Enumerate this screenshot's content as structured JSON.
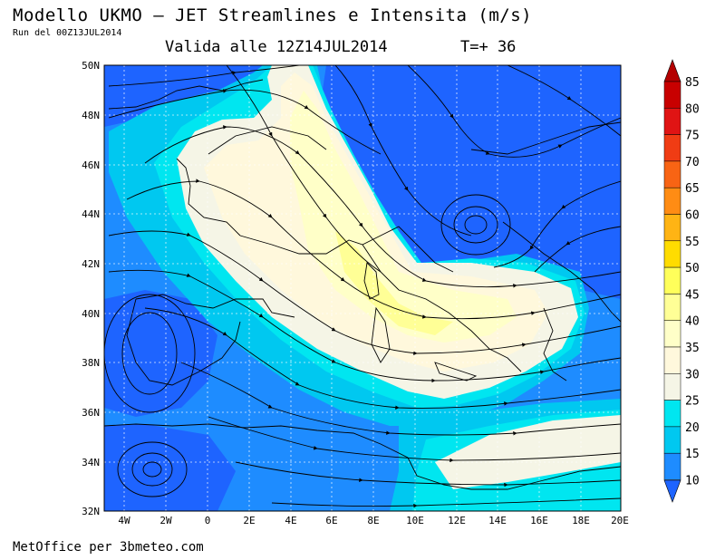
{
  "header": {
    "title": "Modello UKMO — JET Streamlines e Intensita (m/s)",
    "run": "Run del 00Z13JUL2014",
    "valid": "Valida alle 12Z14JUL2014",
    "step": "T=+ 36"
  },
  "footer": {
    "credit": "MetOffice per 3bmeteo.com"
  },
  "map": {
    "lat_ticks": [
      "50N",
      "48N",
      "46N",
      "44N",
      "42N",
      "40N",
      "38N",
      "36N",
      "34N",
      "32N"
    ],
    "lon_ticks": [
      "4W",
      "2W",
      "0",
      "2E",
      "4E",
      "6E",
      "8E",
      "10E",
      "12E",
      "14E",
      "16E",
      "18E",
      "20E"
    ],
    "lon_range": [
      -5,
      20
    ],
    "lat_range": [
      32,
      50
    ]
  },
  "legend": {
    "levels": [
      "85",
      "80",
      "75",
      "70",
      "65",
      "60",
      "55",
      "50",
      "45",
      "40",
      "35",
      "30",
      "25",
      "20",
      "15",
      "10"
    ],
    "colors": [
      "#c80000",
      "#e01414",
      "#f03c14",
      "#f86414",
      "#ff8c14",
      "#ffb414",
      "#ffdc00",
      "#ffff5a",
      "#ffff96",
      "#ffffc8",
      "#fff8dc",
      "#f5f5e6",
      "#00e6f0",
      "#00c8f0",
      "#1e8cff",
      "#1e64ff"
    ]
  }
}
